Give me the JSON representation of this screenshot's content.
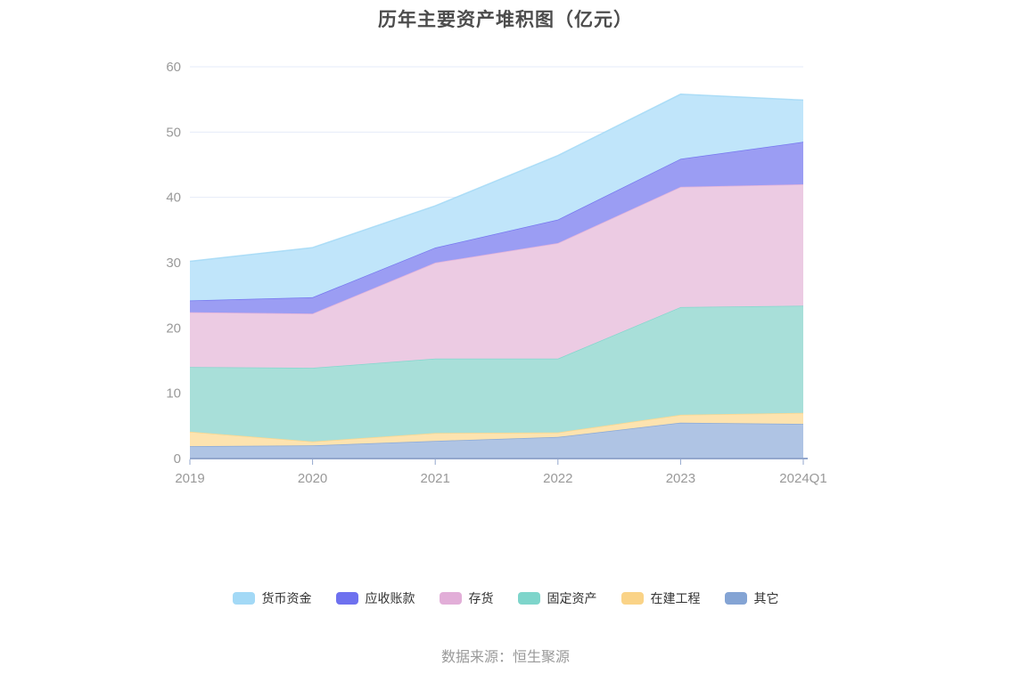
{
  "title": "历年主要资产堆积图（亿元）",
  "source_note": "数据来源：恒生聚源",
  "colors": {
    "background": "#ffffff",
    "title_text": "#4c4c4c",
    "grid": "#e6ebf8",
    "axis_line": "#93a7cd",
    "axis_label": "#999999",
    "legend_text": "#333333",
    "source_text": "#999999"
  },
  "chart_data": {
    "type": "area",
    "stacked": true,
    "title": "历年主要资产堆积图（亿元）",
    "xlabel": "",
    "ylabel": "",
    "x": [
      "2019",
      "2020",
      "2021",
      "2022",
      "2023",
      "2024Q1"
    ],
    "ylim": [
      0,
      60
    ],
    "y_ticks": [
      0,
      10,
      20,
      30,
      40,
      50,
      60
    ],
    "grid": true,
    "legend_position": "bottom",
    "series": [
      {
        "id": "other",
        "name": "其它",
        "color": "#84a4d4",
        "fill": "#afc4e4",
        "values": [
          1.9,
          2.0,
          2.7,
          3.3,
          5.5,
          5.3
        ]
      },
      {
        "id": "construction-in-progress",
        "name": "在建工程",
        "color": "#fad387",
        "fill": "#fde3af",
        "values": [
          2.2,
          0.6,
          1.2,
          0.7,
          1.2,
          1.7
        ]
      },
      {
        "id": "fixed-assets",
        "name": "固定资产",
        "color": "#7ed5cb",
        "fill": "#a8dfd9",
        "values": [
          9.9,
          11.3,
          11.4,
          11.3,
          16.5,
          16.4
        ]
      },
      {
        "id": "inventory",
        "name": "存货",
        "color": "#e2aed8",
        "fill": "#eccbe3",
        "values": [
          8.4,
          8.3,
          14.7,
          17.7,
          18.4,
          18.6
        ]
      },
      {
        "id": "accounts-receivable",
        "name": "应收账款",
        "color": "#6e71ef",
        "fill": "#9b9df3",
        "values": [
          1.8,
          2.5,
          2.3,
          3.6,
          4.3,
          6.5
        ]
      },
      {
        "id": "monetary-funds",
        "name": "货币资金",
        "color": "#a3d9f6",
        "fill": "#c0e5fa",
        "values": [
          6.0,
          7.6,
          6.4,
          9.8,
          9.9,
          6.4
        ]
      }
    ],
    "stack_totals": [
      30.2,
      32.3,
      38.7,
      46.4,
      55.8,
      54.9
    ],
    "legend_order": [
      "货币资金",
      "应收账款",
      "存货",
      "固定资产",
      "在建工程",
      "其它"
    ]
  }
}
